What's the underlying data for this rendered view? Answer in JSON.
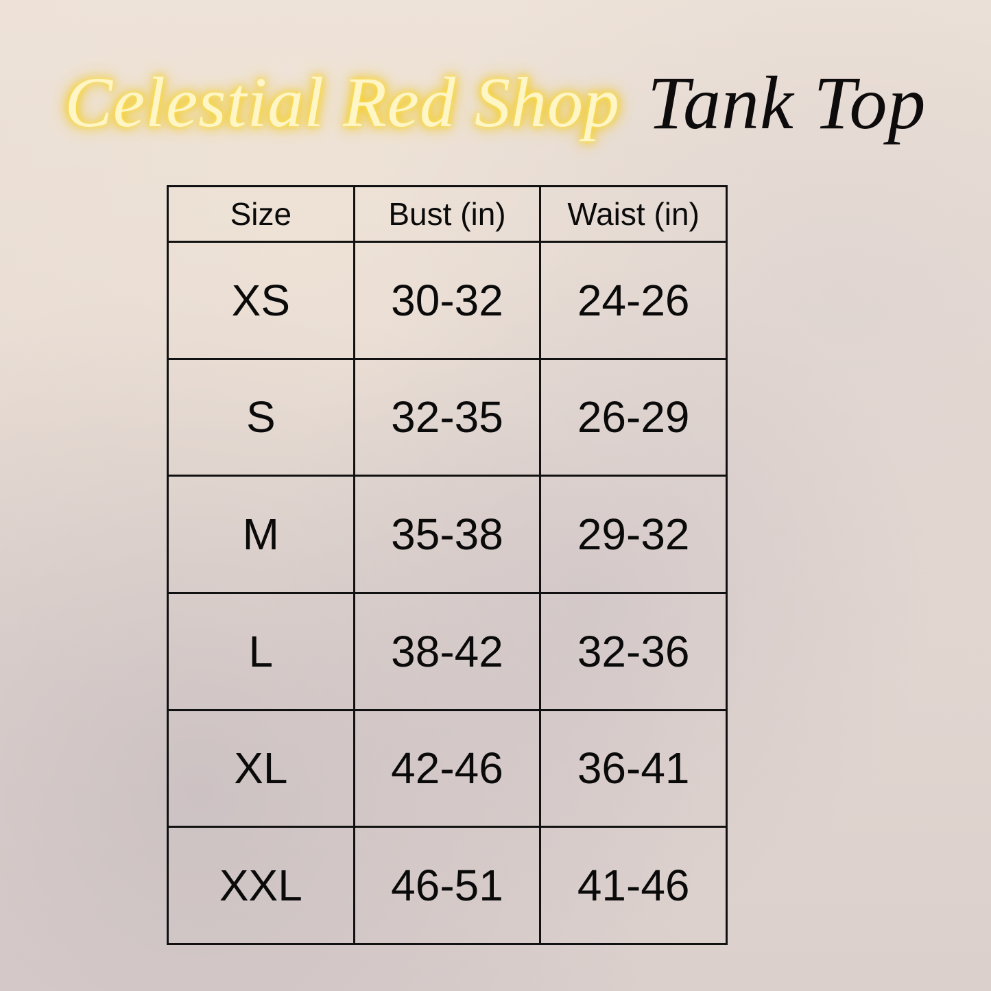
{
  "header": {
    "shop_name": "Celestial Red Shop",
    "product": "Tank Top",
    "neon_color": "#f5c800"
  },
  "table": {
    "columns": [
      "Size",
      "Bust (in)",
      "Waist (in)"
    ],
    "rows": [
      [
        "XS",
        "30-32",
        "24-26"
      ],
      [
        "S",
        "32-35",
        "26-29"
      ],
      [
        "M",
        "35-38",
        "29-32"
      ],
      [
        "L",
        "38-42",
        "32-36"
      ],
      [
        "XL",
        "42-46",
        "36-41"
      ],
      [
        "XXL",
        "46-51",
        "41-46"
      ]
    ]
  }
}
